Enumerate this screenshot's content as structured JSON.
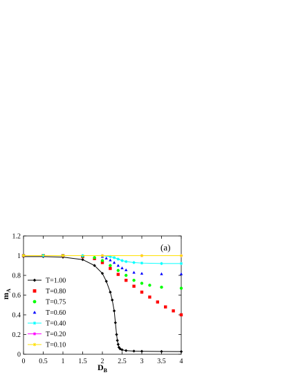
{
  "chart_data": {
    "type": "scatter",
    "panel_label": "(a)",
    "xlabel": "D",
    "xlabel_sub": "B",
    "ylabel": "m",
    "ylabel_sub": "A",
    "xlim": [
      0,
      4
    ],
    "ylim": [
      0,
      1.2
    ],
    "x_ticks": [
      "0",
      "0.5",
      "1",
      "1.5",
      "2",
      "2.5",
      "3",
      "3.5",
      "4"
    ],
    "y_ticks": [
      "0",
      "0.2",
      "0.4",
      "0.6",
      "0.8",
      "1",
      "1.2"
    ],
    "grid": false,
    "legend_position": "left",
    "series": [
      {
        "name": "T=1.00",
        "color": "#000000",
        "marker": "diamond",
        "line": true,
        "x": [
          0,
          0.5,
          1.0,
          1.5,
          1.8,
          2.0,
          2.1,
          2.2,
          2.25,
          2.3,
          2.33,
          2.36,
          2.38,
          2.4,
          2.42,
          2.45,
          2.5,
          2.6,
          2.8,
          3.0,
          3.5,
          4.0
        ],
        "y": [
          0.99,
          0.99,
          0.985,
          0.96,
          0.9,
          0.82,
          0.74,
          0.63,
          0.55,
          0.44,
          0.32,
          0.2,
          0.14,
          0.1,
          0.07,
          0.055,
          0.045,
          0.037,
          0.032,
          0.03,
          0.028,
          0.027
        ]
      },
      {
        "name": "T=0.80",
        "color": "#ff0000",
        "marker": "square",
        "line": false,
        "x": [
          0,
          0.5,
          1.0,
          1.5,
          1.8,
          2.0,
          2.2,
          2.4,
          2.6,
          2.8,
          3.0,
          3.2,
          3.4,
          3.6,
          3.8,
          4.0
        ],
        "y": [
          1.0,
          1.0,
          1.0,
          0.99,
          0.97,
          0.93,
          0.87,
          0.81,
          0.75,
          0.69,
          0.63,
          0.58,
          0.53,
          0.48,
          0.44,
          0.4
        ]
      },
      {
        "name": "T=0.75",
        "color": "#00ff00",
        "marker": "circle",
        "line": false,
        "x": [
          0,
          0.5,
          1.0,
          1.5,
          1.8,
          2.0,
          2.2,
          2.4,
          2.6,
          2.8,
          3.0,
          3.2,
          3.5,
          4.0
        ],
        "y": [
          1.0,
          1.0,
          1.0,
          0.995,
          0.98,
          0.95,
          0.9,
          0.85,
          0.8,
          0.75,
          0.72,
          0.7,
          0.68,
          0.67
        ]
      },
      {
        "name": "T=0.60",
        "color": "#0000ff",
        "marker": "triangle",
        "line": false,
        "x": [
          0,
          0.5,
          1.0,
          1.5,
          2.0,
          2.1,
          2.2,
          2.3,
          2.4,
          2.5,
          2.6,
          2.8,
          3.0,
          3.5,
          4.0
        ],
        "y": [
          1.0,
          1.0,
          1.0,
          1.0,
          0.99,
          0.975,
          0.955,
          0.93,
          0.9,
          0.875,
          0.855,
          0.83,
          0.82,
          0.815,
          0.815
        ]
      },
      {
        "name": "T=0.40",
        "color": "#00ffff",
        "marker": "star",
        "line": true,
        "x": [
          0,
          0.5,
          1.0,
          1.5,
          2.0,
          2.2,
          2.3,
          2.4,
          2.5,
          2.6,
          2.8,
          3.0,
          3.5,
          4.0
        ],
        "y": [
          1.0,
          1.0,
          1.0,
          1.0,
          1.0,
          0.99,
          0.98,
          0.965,
          0.95,
          0.94,
          0.93,
          0.925,
          0.92,
          0.92
        ]
      },
      {
        "name": "T=0.20",
        "color": "#ff00ff",
        "marker": "star",
        "line": true,
        "x": [
          0,
          1.0,
          2.0,
          3.0,
          4.0
        ],
        "y": [
          1.0,
          1.0,
          1.0,
          1.0,
          1.0
        ]
      },
      {
        "name": "T=0.10",
        "color": "#ffe000",
        "marker": "star",
        "line": true,
        "x": [
          0,
          1.0,
          2.0,
          3.0,
          4.0
        ],
        "y": [
          1.0,
          1.0,
          1.0,
          1.0,
          1.0
        ]
      }
    ]
  }
}
